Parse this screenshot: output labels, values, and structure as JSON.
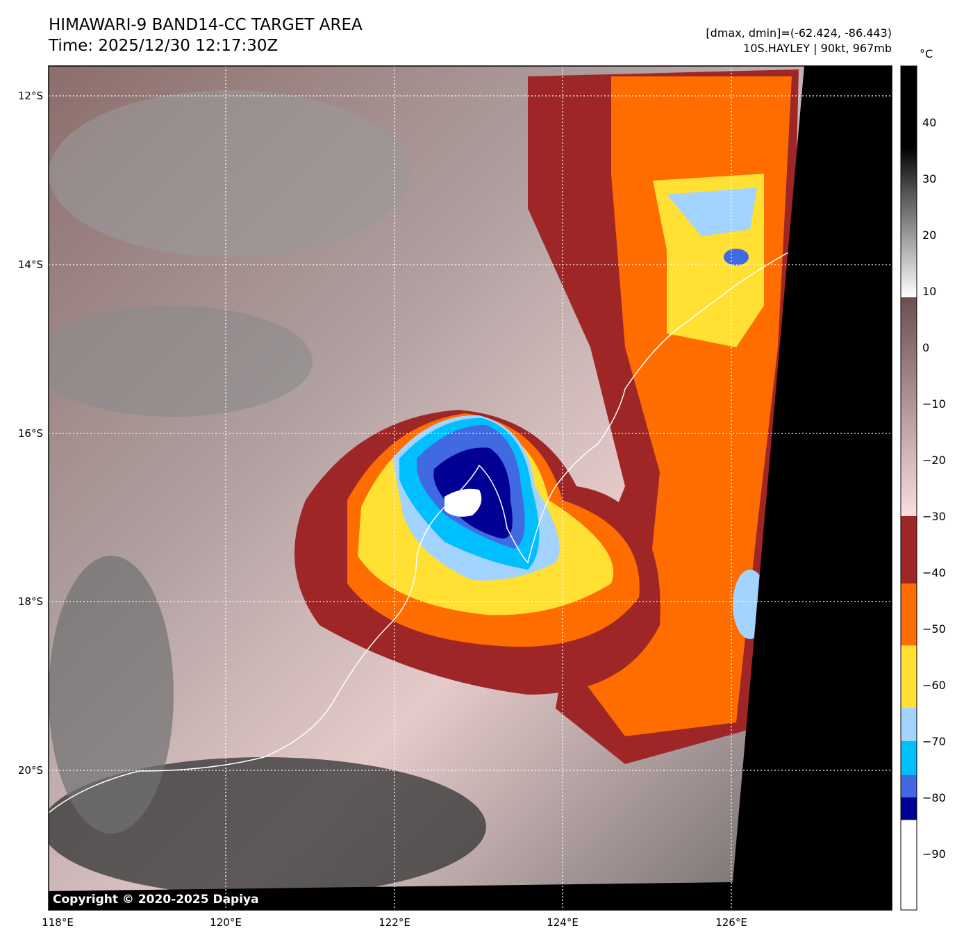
{
  "header": {
    "title": "HIMAWARI-9 BAND14-CC TARGET AREA",
    "time": "Time: 2025/12/30 12:17:30Z",
    "range": "[dmax, dmin]=(-62.424, -86.443)",
    "storm": "10S.HAYLEY | 90kt, 967mb"
  },
  "map": {
    "lat_labels": [
      "12°S",
      "14°S",
      "16°S",
      "18°S",
      "20°S"
    ],
    "lon_labels": [
      "118°E",
      "120°E",
      "122°E",
      "124°E",
      "126°E"
    ],
    "copyright": "Copyright © 2020-2025 Dapiya"
  },
  "colorbar": {
    "unit": "°C",
    "range": [
      -100,
      50
    ],
    "ticks": [
      "40",
      "30",
      "20",
      "10",
      "0",
      "−10",
      "−20",
      "−30",
      "−40",
      "−50",
      "−60",
      "−70",
      "−80",
      "−90"
    ],
    "tick_values": [
      40,
      30,
      20,
      10,
      0,
      -10,
      -20,
      -30,
      -40,
      -50,
      -60,
      -70,
      -80,
      -90
    ],
    "segments": [
      {
        "from": -100,
        "to": -84,
        "color": "#ffffff"
      },
      {
        "from": -84,
        "to": -80,
        "color": "#000095"
      },
      {
        "from": -80,
        "to": -76,
        "color": "#4169e1"
      },
      {
        "from": -76,
        "to": -70,
        "color": "#00bfff"
      },
      {
        "from": -70,
        "to": -64,
        "color": "#a3d3ff"
      },
      {
        "from": -64,
        "to": -53,
        "color": "#ffe033"
      },
      {
        "from": -53,
        "to": -42,
        "color": "#ff6d00"
      },
      {
        "from": -42,
        "to": -30,
        "color": "#9e2626"
      }
    ]
  }
}
